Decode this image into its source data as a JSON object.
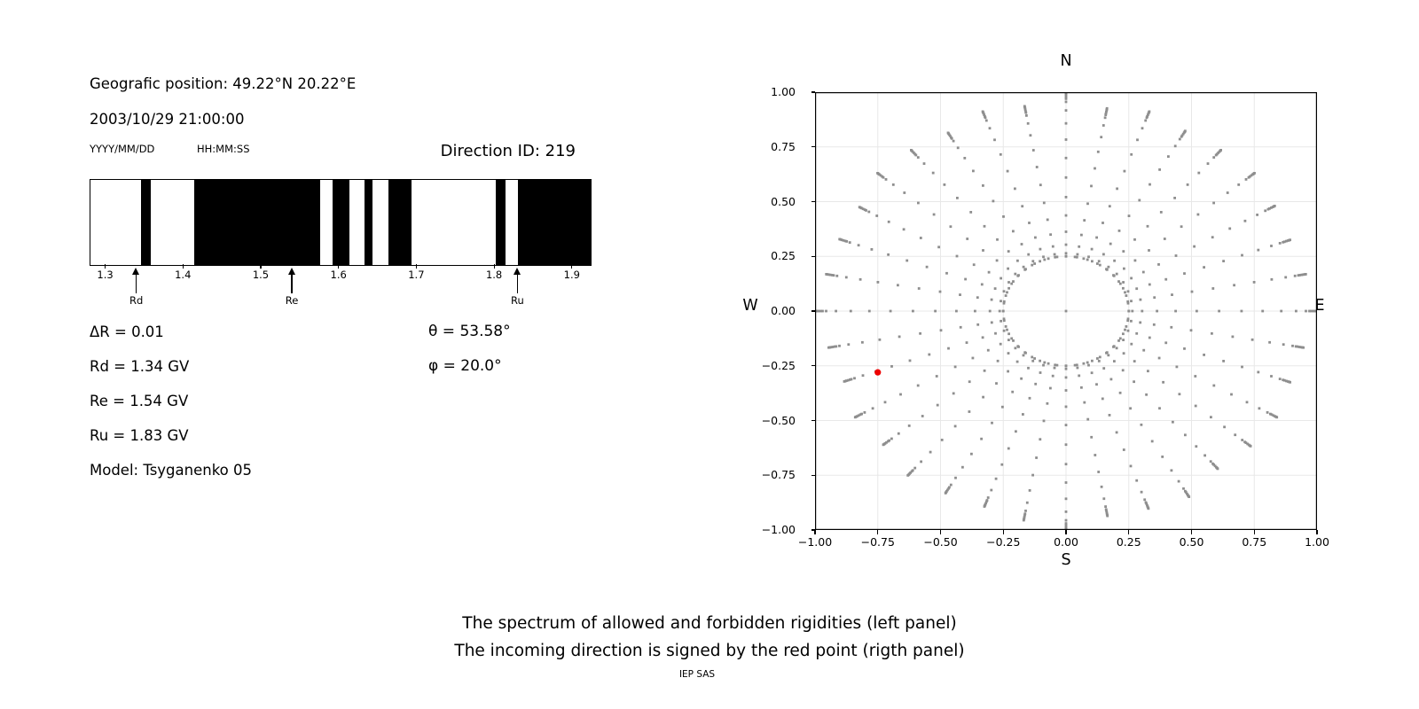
{
  "texts": {
    "geo_position": "Geografic position: 49.22°N 20.22°E",
    "datetime": "2003/10/29 21:00:00",
    "date_format": "YYYY/MM/DD",
    "time_format": "HH:MM:SS",
    "caption_line1": "The spectrum of allowed and forbidden rigidities (left panel)",
    "caption_line2": "The incoming direction is signed by the red point (rigth panel)",
    "credit": "IEP SAS"
  },
  "left_panel": {
    "value_lines": [
      "ΔR = 0.01",
      "Rd = 1.34 GV",
      "Re = 1.54 GV",
      "Ru = 1.83 GV",
      "Model: Tsyganenko 05"
    ],
    "angle_lines": [
      "θ = 53.58°",
      "φ = 20.0°"
    ]
  },
  "chart_data": [
    {
      "type": "bar",
      "title": "Direction ID: 219",
      "description": "Barcode spectrum of allowed (black) and forbidden (white) rigidities",
      "xlim": [
        1.28,
        1.923
      ],
      "xticks": [
        1.3,
        1.4,
        1.5,
        1.6,
        1.7,
        1.8,
        1.9
      ],
      "xtick_labels": [
        "1.3",
        "1.4",
        "1.5",
        "1.6",
        "1.7",
        "1.8",
        "1.9"
      ],
      "delta_r_gv": 0.01,
      "bar_color": "#000000",
      "black_intervals_gv": [
        [
          1.345,
          1.357
        ],
        [
          1.413,
          1.575
        ],
        [
          1.591,
          1.613
        ],
        [
          1.632,
          1.643
        ],
        [
          1.663,
          1.693
        ],
        [
          1.801,
          1.813
        ],
        [
          1.83,
          1.923
        ]
      ],
      "cutoff_arrows": [
        {
          "label": "Rd",
          "value_gv": 1.34
        },
        {
          "label": "Re",
          "value_gv": 1.54
        },
        {
          "label": "Ru",
          "value_gv": 1.83
        }
      ]
    },
    {
      "type": "scatter",
      "description": "Asymptotic directions map; incoming direction marked by red point",
      "compass": {
        "north": "N",
        "south": "S",
        "west": "W",
        "east": "E"
      },
      "xlim": [
        -1,
        1
      ],
      "ylim": [
        -1,
        1
      ],
      "xtick_values": [
        -1,
        -0.75,
        -0.5,
        -0.25,
        0,
        0.25,
        0.5,
        0.75,
        1
      ],
      "xtick_labels": [
        "−1.00",
        "−0.75",
        "−0.50",
        "−0.25",
        "0.00",
        "0.25",
        "0.50",
        "0.75",
        "1.00"
      ],
      "ytick_values": [
        1,
        0.75,
        0.5,
        0.25,
        0,
        -0.25,
        -0.5,
        -0.75,
        -1
      ],
      "ytick_labels": [
        "1.00",
        "0.75",
        "0.50",
        "0.25",
        "0.00",
        "−0.25",
        "−0.50",
        "−0.75",
        "−1.00"
      ],
      "grid": true,
      "grid_step": 0.25,
      "grid_color": "#e8e8e8",
      "dot_color": "#8e8e8e",
      "center_dot": {
        "x": 0,
        "y": 0
      },
      "inner_ring": {
        "radius": 0.25,
        "dots": 44
      },
      "spokes": {
        "count": 36,
        "step_deg": 10,
        "start_radius": 0.25,
        "main_dots": 13,
        "tip_cluster_offsets": [
          0.024,
          0.016,
          0.009,
          0.004,
          0
        ],
        "tip_radii": [
          1.0,
          0.97,
          0.95,
          0.96,
          0.98,
          0.96,
          0.95,
          0.97,
          0.94,
          1.0,
          0.95,
          0.97,
          0.94,
          0.96,
          0.98,
          0.95,
          0.96,
          0.97,
          1.0,
          0.96,
          0.94,
          0.97,
          0.95,
          0.98,
          0.96,
          0.95,
          0.97,
          1.0,
          0.95,
          0.96,
          0.98,
          0.94,
          0.96,
          0.97,
          0.95,
          0.96
        ]
      },
      "red_point": {
        "x": -0.75,
        "y": -0.28,
        "color": "#ee0000"
      }
    }
  ]
}
